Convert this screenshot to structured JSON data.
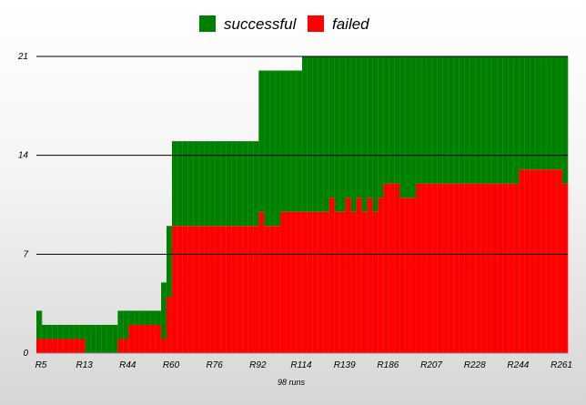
{
  "chart_data": {
    "type": "bar",
    "stacked": true,
    "xlabel": "98 runs",
    "ylabel": "",
    "ylim": [
      0,
      21
    ],
    "yticks": [
      0,
      7,
      14,
      21
    ],
    "grid": true,
    "legend_position": "top",
    "colors": {
      "successful": "#008000",
      "failed": "#ff0000"
    },
    "x_tick_labels": [
      "R5",
      "R13",
      "R44",
      "R60",
      "R76",
      "R92",
      "R114",
      "R139",
      "R186",
      "R207",
      "R228",
      "R244",
      "R261"
    ],
    "x_tick_indices": [
      0,
      8,
      16,
      24,
      32,
      40,
      48,
      56,
      64,
      72,
      80,
      88,
      96
    ],
    "run_count": 98,
    "series": [
      {
        "name": "failed",
        "values": [
          1,
          1,
          1,
          1,
          1,
          1,
          1,
          1,
          1,
          0,
          0,
          0,
          0,
          0,
          0,
          1,
          1,
          2,
          2,
          2,
          2,
          2,
          2,
          1,
          4,
          9,
          9,
          9,
          9,
          9,
          9,
          9,
          9,
          9,
          9,
          9,
          9,
          9,
          9,
          9,
          9,
          10,
          9,
          9,
          9,
          10,
          10,
          10,
          10,
          10,
          10,
          10,
          10,
          10,
          11,
          10,
          10,
          11,
          10,
          11,
          10,
          11,
          10,
          11,
          12,
          12,
          12,
          11,
          11,
          11,
          12,
          12,
          12,
          12,
          12,
          12,
          12,
          12,
          12,
          12,
          12,
          12,
          12,
          12,
          12,
          12,
          12,
          12,
          12,
          13,
          13,
          13,
          13,
          13,
          13,
          13,
          13,
          12
        ]
      },
      {
        "name": "successful",
        "values": [
          2,
          1,
          1,
          1,
          1,
          1,
          1,
          1,
          1,
          2,
          2,
          2,
          2,
          2,
          2,
          2,
          2,
          1,
          1,
          1,
          1,
          1,
          1,
          4,
          5,
          6,
          6,
          6,
          6,
          6,
          6,
          6,
          6,
          6,
          6,
          6,
          6,
          6,
          6,
          6,
          6,
          10,
          11,
          11,
          11,
          10,
          10,
          10,
          10,
          11,
          11,
          11,
          11,
          11,
          10,
          11,
          11,
          10,
          11,
          10,
          11,
          10,
          11,
          10,
          9,
          9,
          9,
          10,
          10,
          10,
          9,
          9,
          9,
          9,
          9,
          9,
          9,
          9,
          9,
          9,
          9,
          9,
          9,
          9,
          9,
          9,
          9,
          9,
          9,
          8,
          8,
          8,
          8,
          8,
          8,
          8,
          8,
          9
        ]
      }
    ]
  }
}
